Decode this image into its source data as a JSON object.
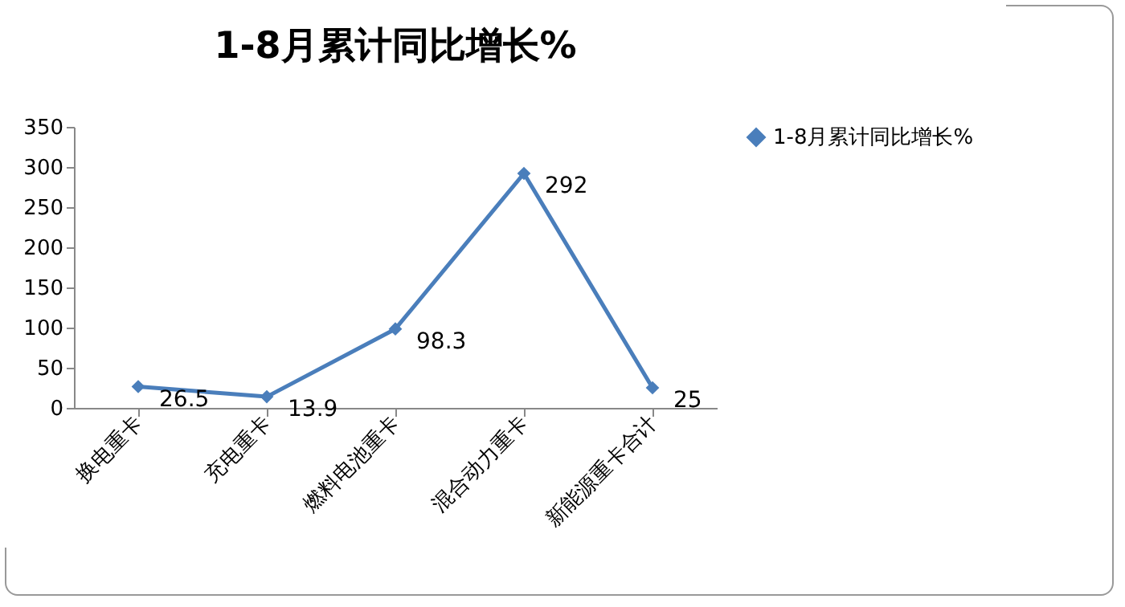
{
  "chart_data": {
    "type": "line",
    "title": "1-8月累计同比增长%",
    "categories": [
      "换电重卡",
      "充电重卡",
      "燃料电池重卡",
      "混合动力重卡",
      "新能源重卡合计"
    ],
    "series": [
      {
        "name": "1-8月累计同比增长%",
        "color": "#4a7ebb",
        "values": [
          26.5,
          13.9,
          98.3,
          292,
          25
        ]
      }
    ],
    "ylim": [
      0,
      350
    ],
    "yticks": [
      0,
      50,
      100,
      150,
      200,
      250,
      300,
      350
    ],
    "grid": false,
    "legend": "right",
    "marker": "diamond",
    "line_style": "solid",
    "data_labels": true
  }
}
